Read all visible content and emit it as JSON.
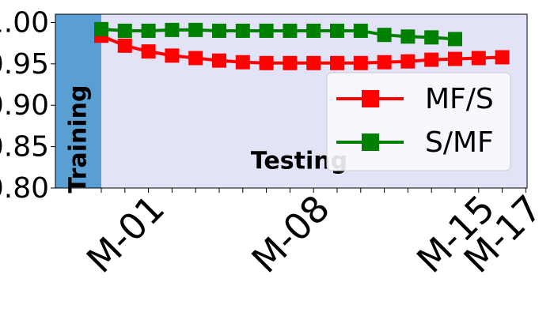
{
  "chart_data": {
    "type": "line",
    "categories": [
      null,
      null,
      "M-01",
      null,
      null,
      null,
      null,
      null,
      null,
      "M-08",
      null,
      null,
      null,
      null,
      null,
      null,
      "M-15",
      null,
      "M-17"
    ],
    "series": [
      {
        "name": "MF/S",
        "color": "#ff0000",
        "values": [
          0.984,
          0.972,
          0.965,
          0.96,
          0.957,
          0.954,
          0.952,
          0.951,
          0.951,
          0.951,
          0.951,
          0.951,
          0.952,
          0.953,
          0.955,
          0.956,
          0.957,
          0.958,
          null
        ]
      },
      {
        "name": "S/MF",
        "color": "#008000",
        "values": [
          0.992,
          0.99,
          0.99,
          0.991,
          0.991,
          0.99,
          0.99,
          0.99,
          0.99,
          0.99,
          0.99,
          0.99,
          0.985,
          0.983,
          0.982,
          0.98,
          null,
          null,
          null
        ]
      }
    ],
    "ylim": [
      0.8,
      1.01
    ],
    "yticks": [
      {
        "value": 0.8,
        "label": "0.80"
      },
      {
        "value": 0.85,
        "label": "0.85"
      },
      {
        "value": 0.9,
        "label": "0.90"
      },
      {
        "value": 0.95,
        "label": "0.95"
      },
      {
        "value": 1.0,
        "label": "1.00"
      }
    ],
    "annotations": [
      "Training",
      "Testing"
    ],
    "training_color": "#5a9fd4",
    "background_color": "#e3e3f7",
    "legend": "right"
  }
}
